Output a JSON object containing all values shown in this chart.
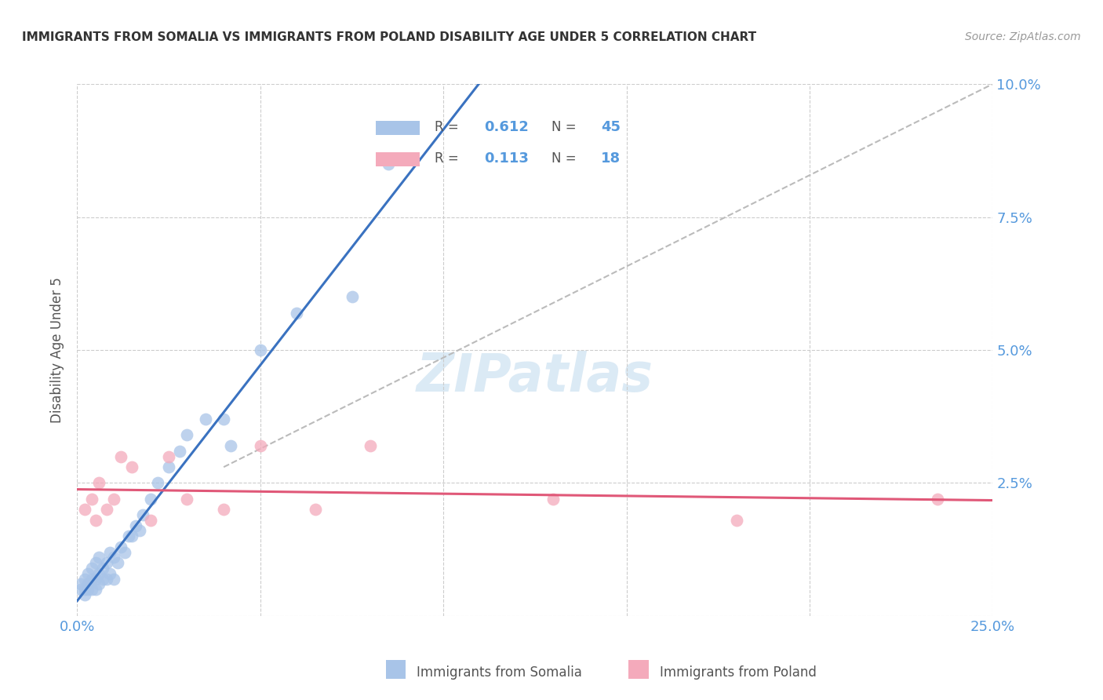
{
  "title": "IMMIGRANTS FROM SOMALIA VS IMMIGRANTS FROM POLAND DISABILITY AGE UNDER 5 CORRELATION CHART",
  "source": "Source: ZipAtlas.com",
  "ylabel": "Disability Age Under 5",
  "xlim": [
    0.0,
    0.25
  ],
  "ylim": [
    0.0,
    0.1
  ],
  "legend_somalia": "Immigrants from Somalia",
  "legend_poland": "Immigrants from Poland",
  "R_somalia": 0.612,
  "N_somalia": 45,
  "R_poland": 0.113,
  "N_poland": 18,
  "color_somalia": "#A8C4E8",
  "color_poland": "#F4AABB",
  "line_color_somalia": "#3A72C0",
  "line_color_poland": "#E05878",
  "diag_line_color": "#BBBBBB",
  "title_color": "#333333",
  "tick_label_color": "#5599DD",
  "somalia_x": [
    0.001,
    0.001,
    0.002,
    0.002,
    0.002,
    0.003,
    0.003,
    0.003,
    0.004,
    0.004,
    0.004,
    0.005,
    0.005,
    0.005,
    0.006,
    0.006,
    0.006,
    0.007,
    0.007,
    0.008,
    0.008,
    0.009,
    0.009,
    0.01,
    0.01,
    0.011,
    0.012,
    0.013,
    0.014,
    0.015,
    0.016,
    0.017,
    0.018,
    0.02,
    0.022,
    0.025,
    0.028,
    0.03,
    0.035,
    0.04,
    0.042,
    0.05,
    0.06,
    0.075,
    0.085
  ],
  "somalia_y": [
    0.005,
    0.006,
    0.004,
    0.005,
    0.007,
    0.005,
    0.006,
    0.008,
    0.005,
    0.007,
    0.009,
    0.005,
    0.007,
    0.01,
    0.006,
    0.008,
    0.011,
    0.007,
    0.009,
    0.007,
    0.01,
    0.008,
    0.012,
    0.007,
    0.011,
    0.01,
    0.013,
    0.012,
    0.015,
    0.015,
    0.017,
    0.016,
    0.019,
    0.022,
    0.025,
    0.028,
    0.031,
    0.034,
    0.037,
    0.037,
    0.032,
    0.05,
    0.057,
    0.06,
    0.085
  ],
  "poland_x": [
    0.002,
    0.004,
    0.005,
    0.006,
    0.008,
    0.01,
    0.012,
    0.015,
    0.02,
    0.025,
    0.03,
    0.04,
    0.05,
    0.065,
    0.08,
    0.13,
    0.18,
    0.235
  ],
  "poland_y": [
    0.02,
    0.022,
    0.018,
    0.025,
    0.02,
    0.022,
    0.03,
    0.028,
    0.018,
    0.03,
    0.022,
    0.02,
    0.032,
    0.02,
    0.032,
    0.022,
    0.018,
    0.022
  ]
}
